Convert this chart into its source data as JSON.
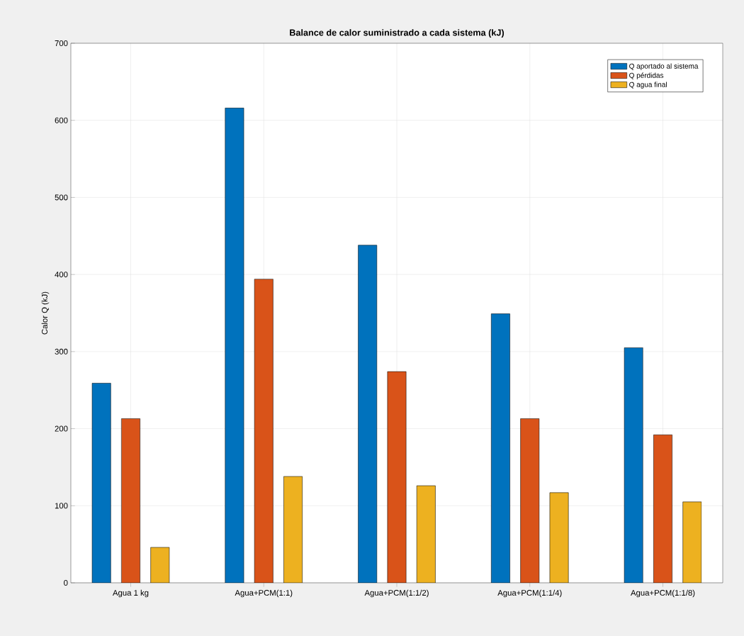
{
  "chart_data": {
    "type": "bar",
    "title": "Balance de calor suministrado a cada sistema (kJ)",
    "ylabel": "Calor Q (kJ)",
    "categories": [
      "Agua 1 kg",
      "Agua+PCM(1:1)",
      "Agua+PCM(1:1/2)",
      "Agua+PCM(1:1/4)",
      "Agua+PCM(1:1/8)"
    ],
    "series": [
      {
        "name": "Q aportado al sistema",
        "color": "#0072bd",
        "values": [
          259,
          616,
          438,
          349,
          305
        ]
      },
      {
        "name": "Q pérdidas",
        "color": "#d95319",
        "values": [
          213,
          394,
          274,
          213,
          192
        ]
      },
      {
        "name": "Q agua final",
        "color": "#edb120",
        "values": [
          46,
          138,
          126,
          117,
          105
        ]
      }
    ],
    "ylim": [
      0,
      700
    ],
    "yticks": [
      0,
      100,
      200,
      300,
      400,
      500,
      600,
      700
    ],
    "grid": true,
    "legend": "top right"
  }
}
